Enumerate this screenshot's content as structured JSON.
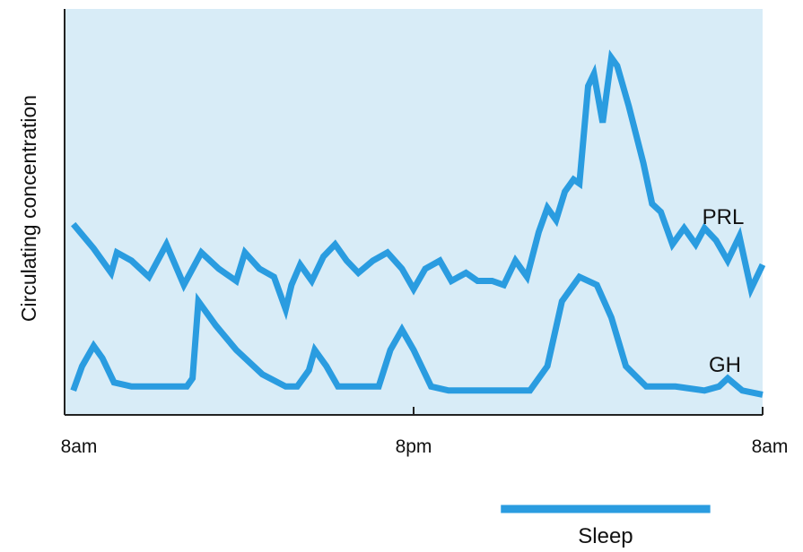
{
  "chart_data": {
    "type": "line",
    "ylabel": "Circulating concentration",
    "xlabel": "",
    "x_tick_labels": [
      "8am",
      "8pm",
      "8am"
    ],
    "xlim": [
      0,
      24
    ],
    "ylim": [
      0,
      100
    ],
    "grid": false,
    "background_color": "#d8ecf7",
    "series_color": "#2a9ce0",
    "series": [
      {
        "name": "PRL",
        "points": [
          [
            0.3,
            47
          ],
          [
            1.0,
            41
          ],
          [
            1.6,
            35
          ],
          [
            1.8,
            40
          ],
          [
            2.3,
            38
          ],
          [
            2.9,
            34
          ],
          [
            3.5,
            42
          ],
          [
            4.1,
            32
          ],
          [
            4.7,
            40
          ],
          [
            5.3,
            36
          ],
          [
            5.9,
            33
          ],
          [
            6.2,
            40
          ],
          [
            6.7,
            36
          ],
          [
            7.2,
            34
          ],
          [
            7.6,
            26
          ],
          [
            7.8,
            32
          ],
          [
            8.1,
            37
          ],
          [
            8.5,
            33
          ],
          [
            8.9,
            39
          ],
          [
            9.3,
            42
          ],
          [
            9.7,
            38
          ],
          [
            10.1,
            35
          ],
          [
            10.6,
            38
          ],
          [
            11.1,
            40
          ],
          [
            11.6,
            36
          ],
          [
            12.0,
            31
          ],
          [
            12.4,
            36
          ],
          [
            12.9,
            38
          ],
          [
            13.3,
            33
          ],
          [
            13.8,
            35
          ],
          [
            14.2,
            33
          ],
          [
            14.7,
            33
          ],
          [
            15.1,
            32
          ],
          [
            15.5,
            38
          ],
          [
            15.9,
            34
          ],
          [
            16.3,
            45
          ],
          [
            16.6,
            51
          ],
          [
            16.9,
            48
          ],
          [
            17.2,
            55
          ],
          [
            17.5,
            58
          ],
          [
            17.7,
            57
          ],
          [
            18.0,
            81
          ],
          [
            18.2,
            84
          ],
          [
            18.5,
            72
          ],
          [
            18.8,
            88
          ],
          [
            19.0,
            86
          ],
          [
            19.4,
            76
          ],
          [
            19.9,
            62
          ],
          [
            20.2,
            52
          ],
          [
            20.5,
            50
          ],
          [
            20.9,
            42
          ],
          [
            21.3,
            46
          ],
          [
            21.7,
            42
          ],
          [
            22.0,
            46
          ],
          [
            22.4,
            43
          ],
          [
            22.8,
            38
          ],
          [
            23.2,
            44
          ],
          [
            23.6,
            31
          ],
          [
            24.0,
            37
          ]
        ]
      },
      {
        "name": "GH",
        "points": [
          [
            0.3,
            6
          ],
          [
            0.6,
            12
          ],
          [
            1.0,
            17
          ],
          [
            1.3,
            14
          ],
          [
            1.7,
            8
          ],
          [
            2.3,
            7
          ],
          [
            3.5,
            7
          ],
          [
            4.2,
            7
          ],
          [
            4.4,
            9
          ],
          [
            4.6,
            28
          ],
          [
            5.2,
            22
          ],
          [
            5.9,
            16
          ],
          [
            6.8,
            10
          ],
          [
            7.6,
            7
          ],
          [
            8.0,
            7
          ],
          [
            8.4,
            11
          ],
          [
            8.6,
            16
          ],
          [
            9.0,
            12
          ],
          [
            9.4,
            7
          ],
          [
            10.0,
            7
          ],
          [
            10.8,
            7
          ],
          [
            11.2,
            16
          ],
          [
            11.6,
            21
          ],
          [
            12.0,
            16
          ],
          [
            12.6,
            7
          ],
          [
            13.2,
            6
          ],
          [
            14.0,
            6
          ],
          [
            15.0,
            6
          ],
          [
            16.0,
            6
          ],
          [
            16.6,
            12
          ],
          [
            17.1,
            28
          ],
          [
            17.7,
            34
          ],
          [
            18.3,
            32
          ],
          [
            18.8,
            24
          ],
          [
            19.3,
            12
          ],
          [
            20.0,
            7
          ],
          [
            21.0,
            7
          ],
          [
            22.0,
            6
          ],
          [
            22.5,
            7
          ],
          [
            22.8,
            9
          ],
          [
            23.3,
            6
          ],
          [
            24.0,
            5
          ]
        ]
      }
    ],
    "sleep_period": {
      "start": 15.0,
      "end": 22.2,
      "label": "Sleep"
    }
  }
}
